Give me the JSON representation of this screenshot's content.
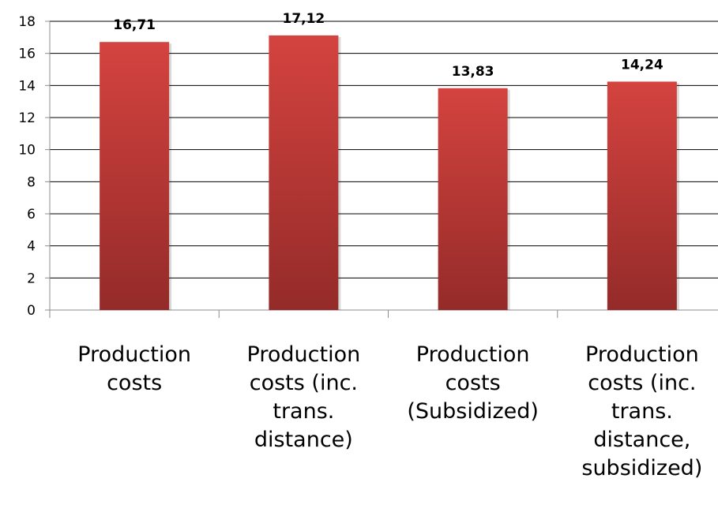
{
  "chart_data": {
    "type": "bar",
    "categories": [
      [
        "Production",
        "costs"
      ],
      [
        "Production",
        "costs (inc.",
        "trans.",
        "distance)"
      ],
      [
        "Production",
        "costs",
        "(Subsidized)"
      ],
      [
        "Production",
        "costs (inc.",
        "trans.",
        "distance,",
        "subsidized)"
      ]
    ],
    "values": [
      16.71,
      17.12,
      13.83,
      14.24
    ],
    "data_labels": [
      "16,71",
      "17,12",
      "13,83",
      "14,24"
    ],
    "title": "",
    "xlabel": "",
    "ylabel": "",
    "ylim": [
      0,
      18
    ],
    "yticks": [
      0,
      2,
      4,
      6,
      8,
      10,
      12,
      14,
      16,
      18
    ],
    "grid": true,
    "legend": "none",
    "colors": {
      "bar_top": "#d4433f",
      "bar_bottom": "#942b29",
      "gridline": "#000000",
      "axis": "#8c8c8c"
    }
  }
}
